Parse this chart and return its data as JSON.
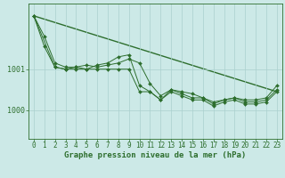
{
  "background_color": "#cce9e7",
  "grid_color": "#aad0ce",
  "line_color": "#2d6e2d",
  "marker_color": "#2d6e2d",
  "xlabel": "Graphe pression niveau de la mer (hPa)",
  "xlabel_fontsize": 6.5,
  "xlabel_bold": true,
  "tick_fontsize": 5.5,
  "ylim_min": 999.3,
  "ylim_max": 1002.6,
  "yticks": [
    1000,
    1001
  ],
  "xticks": [
    0,
    1,
    2,
    3,
    4,
    5,
    6,
    7,
    8,
    9,
    10,
    11,
    12,
    13,
    14,
    15,
    16,
    17,
    18,
    19,
    20,
    21,
    22,
    23
  ],
  "series1_x": [
    0,
    1,
    2,
    3,
    4,
    5,
    6,
    7,
    8,
    9,
    10,
    11,
    12,
    13,
    14,
    15,
    16,
    17,
    18,
    19,
    20,
    21,
    22,
    23
  ],
  "series1_y": [
    1002.3,
    1001.55,
    1001.05,
    1001.0,
    1001.05,
    1001.0,
    1001.1,
    1001.15,
    1001.3,
    1001.35,
    1000.6,
    1000.45,
    1000.25,
    1000.5,
    1000.4,
    1000.3,
    1000.3,
    1000.15,
    1000.25,
    1000.3,
    1000.2,
    1000.2,
    1000.25,
    1000.5
  ],
  "series2_x": [
    0,
    1,
    2,
    3,
    4,
    5,
    6,
    7,
    8,
    9,
    10,
    11,
    12,
    13,
    14,
    15,
    16,
    17,
    18,
    19,
    20,
    21,
    22,
    23
  ],
  "series2_y": [
    1002.3,
    1001.8,
    1001.15,
    1001.05,
    1001.05,
    1001.1,
    1001.05,
    1001.1,
    1001.15,
    1001.25,
    1001.15,
    1000.65,
    1000.35,
    1000.5,
    1000.45,
    1000.4,
    1000.3,
    1000.2,
    1000.25,
    1000.3,
    1000.25,
    1000.25,
    1000.3,
    1000.6
  ],
  "series3_x": [
    0,
    2,
    3,
    4,
    5,
    6,
    7,
    8,
    9,
    10,
    11,
    12,
    13,
    14,
    15,
    16,
    17,
    18,
    19,
    20,
    21,
    22,
    23
  ],
  "series3_y": [
    1002.3,
    1001.05,
    1001.0,
    1001.0,
    1001.0,
    1001.0,
    1001.0,
    1001.0,
    1001.0,
    1000.45,
    1000.45,
    1000.25,
    1000.45,
    1000.35,
    1000.25,
    1000.25,
    1000.1,
    1000.2,
    1000.25,
    1000.15,
    1000.15,
    1000.2,
    1000.45
  ],
  "trend_x": [
    0,
    23
  ],
  "trend_y": [
    1002.3,
    1000.45
  ]
}
